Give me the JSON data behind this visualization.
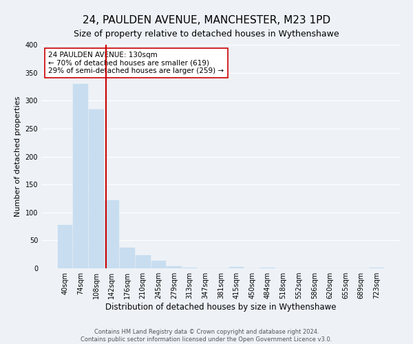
{
  "title": "24, PAULDEN AVENUE, MANCHESTER, M23 1PD",
  "subtitle": "Size of property relative to detached houses in Wythenshawe",
  "xlabel": "Distribution of detached houses by size in Wythenshawe",
  "ylabel": "Number of detached properties",
  "bin_labels": [
    "40sqm",
    "74sqm",
    "108sqm",
    "142sqm",
    "176sqm",
    "210sqm",
    "245sqm",
    "279sqm",
    "313sqm",
    "347sqm",
    "381sqm",
    "415sqm",
    "450sqm",
    "484sqm",
    "518sqm",
    "552sqm",
    "586sqm",
    "620sqm",
    "655sqm",
    "689sqm",
    "723sqm"
  ],
  "bar_values": [
    77,
    330,
    284,
    122,
    37,
    24,
    14,
    4,
    1,
    0,
    0,
    3,
    0,
    1,
    0,
    0,
    0,
    0,
    0,
    0,
    1
  ],
  "bar_color": "#c8ddf0",
  "bar_edge_color": "#c8ddf0",
  "annotation_text": "24 PAULDEN AVENUE: 130sqm\n← 70% of detached houses are smaller (619)\n29% of semi-detached houses are larger (259) →",
  "annotation_box_color": "#ffffff",
  "annotation_box_edge_color": "#cc0000",
  "vline_color": "#cc0000",
  "ylim": [
    0,
    400
  ],
  "yticks": [
    0,
    50,
    100,
    150,
    200,
    250,
    300,
    350,
    400
  ],
  "background_color": "#eef2f7",
  "footer_line1": "Contains HM Land Registry data © Crown copyright and database right 2024.",
  "footer_line2": "Contains public sector information licensed under the Open Government Licence v3.0.",
  "title_fontsize": 11,
  "subtitle_fontsize": 9,
  "xlabel_fontsize": 8.5,
  "ylabel_fontsize": 8,
  "tick_fontsize": 7,
  "annotation_fontsize": 7.5,
  "footer_fontsize": 6
}
